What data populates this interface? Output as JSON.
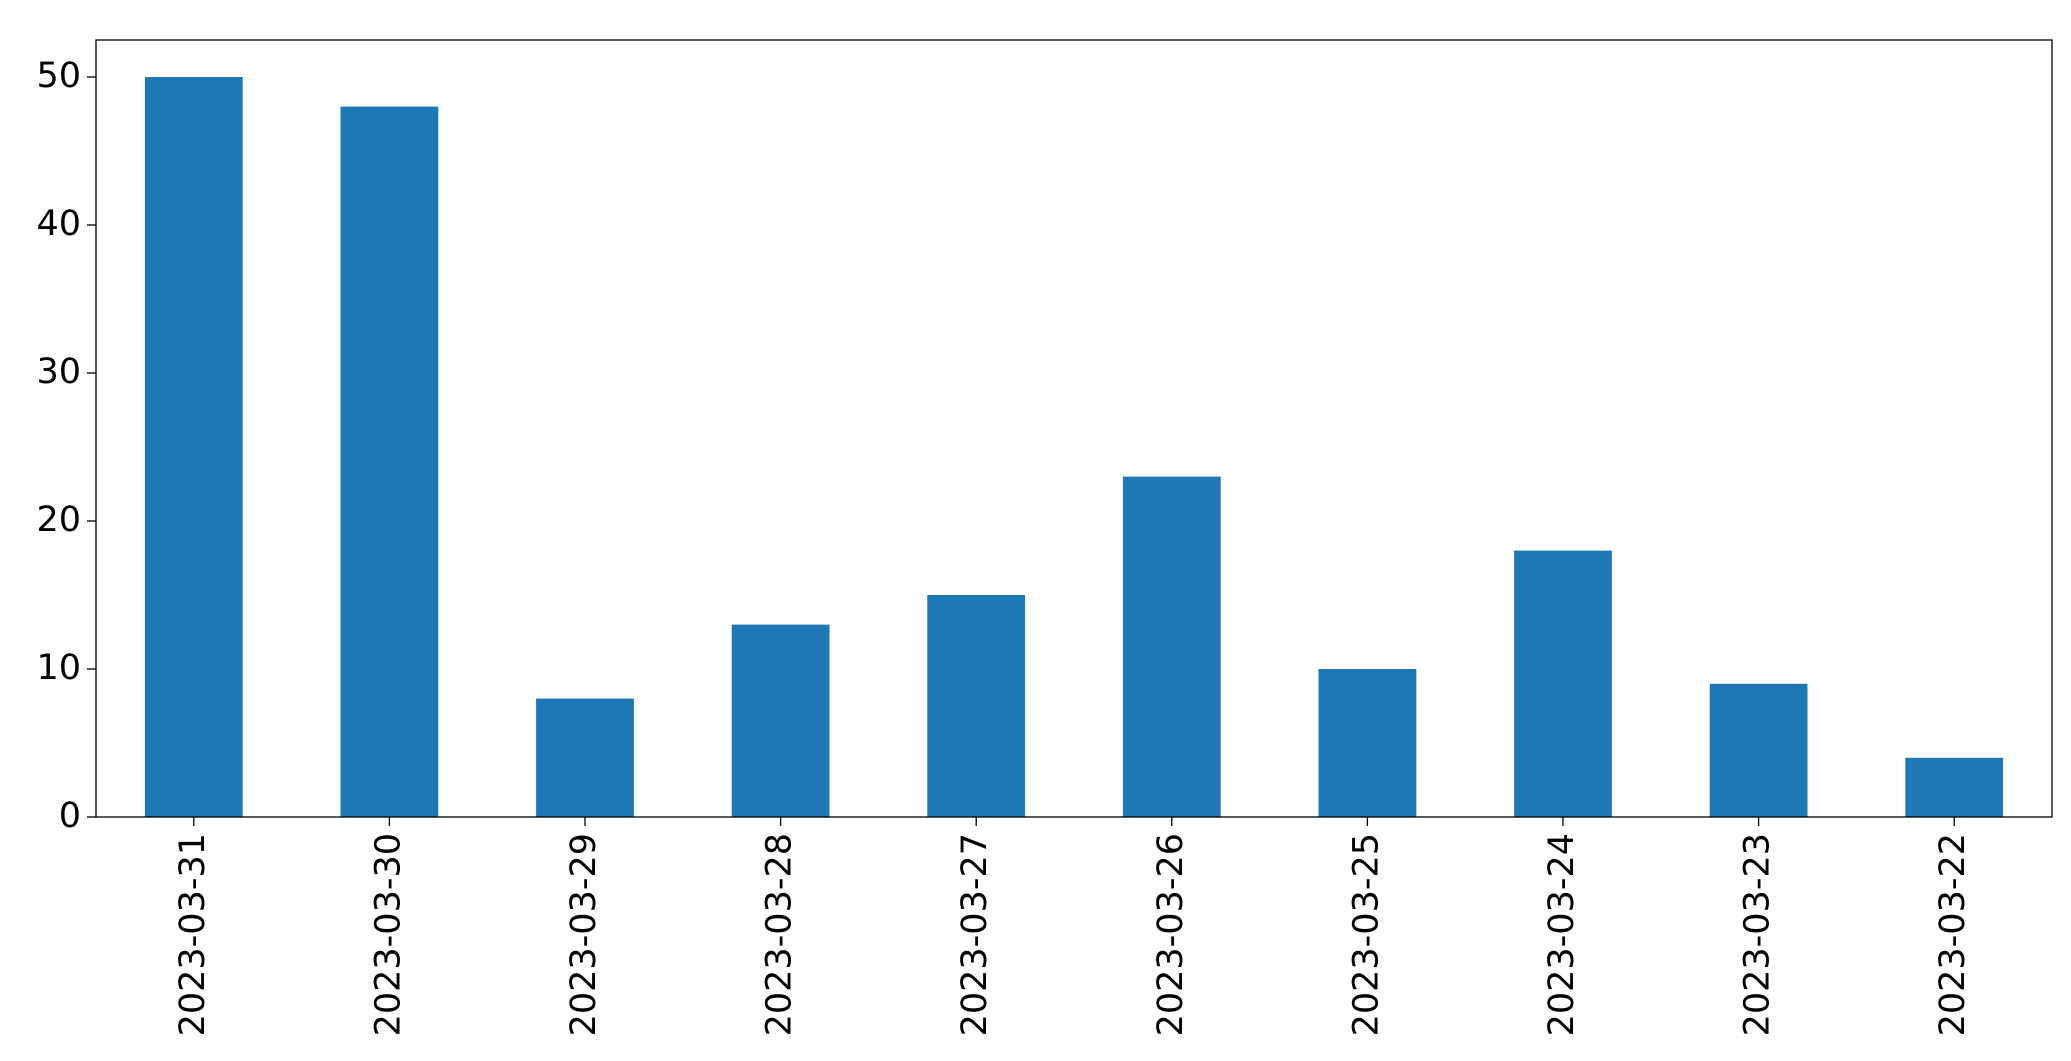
{
  "chart_data": {
    "type": "bar",
    "categories": [
      "2023-03-31",
      "2023-03-30",
      "2023-03-29",
      "2023-03-28",
      "2023-03-27",
      "2023-03-26",
      "2023-03-25",
      "2023-03-24",
      "2023-03-23",
      "2023-03-22"
    ],
    "values": [
      50,
      48,
      8,
      13,
      15,
      23,
      10,
      18,
      9,
      4
    ],
    "color": "#1f77b4",
    "ylim": [
      0,
      52.5
    ],
    "yticks": [
      0,
      10,
      20,
      30,
      40,
      50
    ],
    "grid": false
  }
}
